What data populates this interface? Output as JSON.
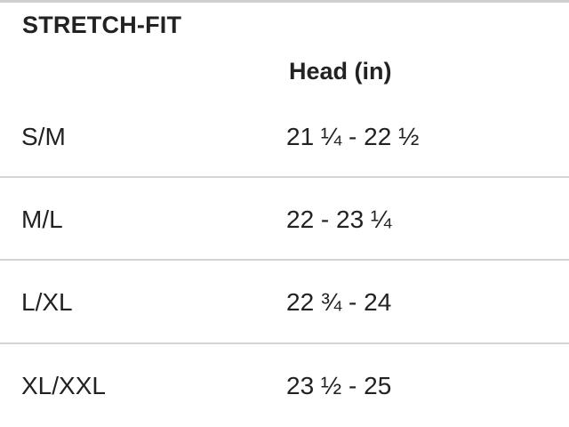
{
  "table": {
    "title": "STRETCH-FIT",
    "column_header": "Head (in)",
    "rows": [
      {
        "size": "S/M",
        "head": "21 ¼ - 22 ½"
      },
      {
        "size": "M/L",
        "head": "22 - 23 ¼"
      },
      {
        "size": "L/XL",
        "head": "22 ¾ - 24"
      },
      {
        "size": "XL/XXL",
        "head": "23 ½ - 25"
      }
    ]
  }
}
